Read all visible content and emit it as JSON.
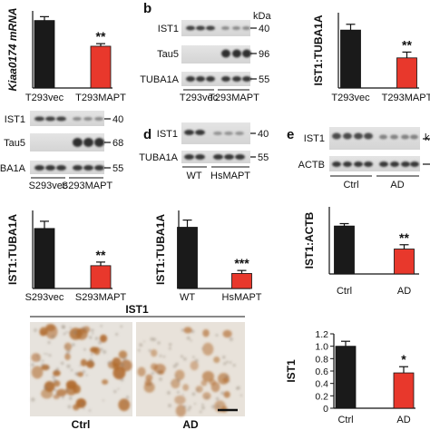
{
  "colors": {
    "control": "#1a1a1a",
    "treated": "#e8382c",
    "blot_bg": "#dedede",
    "band": "#262626"
  },
  "panels": {
    "b": {
      "letter": "b"
    },
    "d": {
      "letter": "d"
    },
    "e": {
      "letter": "e"
    }
  },
  "chart_data": [
    {
      "id": "chart-a-mrna",
      "type": "bar",
      "ylabel": "Kiaa0174 mRNA",
      "categories": [
        "T293vec",
        "T293MAPT"
      ],
      "values": [
        1.05,
        0.65
      ],
      "errors": [
        0.06,
        0.04
      ],
      "significance": "**",
      "ylim": [
        0,
        1.2
      ]
    },
    {
      "id": "chart-b-ratio",
      "type": "bar",
      "ylabel": "IST1:TUBA1A",
      "categories": [
        "T293vec",
        "T293MAPT"
      ],
      "values": [
        1.0,
        0.52
      ],
      "errors": [
        0.1,
        0.1
      ],
      "significance": "**",
      "ylim": [
        0,
        1.3
      ]
    },
    {
      "id": "chart-c-ratio",
      "type": "bar",
      "ylabel": "IST1:TUBA1A",
      "categories": [
        "S293vec",
        "S293MAPT"
      ],
      "values": [
        1.0,
        0.38
      ],
      "errors": [
        0.12,
        0.06
      ],
      "significance": "**",
      "ylim": [
        0,
        1.3
      ]
    },
    {
      "id": "chart-d-ratio",
      "type": "bar",
      "ylabel": "IST1:TUBA1A",
      "categories": [
        "WT",
        "HsMAPT"
      ],
      "values": [
        1.02,
        0.25
      ],
      "errors": [
        0.12,
        0.05
      ],
      "significance": "***",
      "ylim": [
        0,
        1.3
      ]
    },
    {
      "id": "chart-e-ratio",
      "type": "bar",
      "ylabel": "IST1:ACTB",
      "categories": [
        "Ctrl",
        "AD"
      ],
      "values": [
        1.0,
        0.52
      ],
      "errors": [
        0.05,
        0.09
      ],
      "significance": "**",
      "ylim": [
        0,
        1.4
      ]
    },
    {
      "id": "chart-f-ist1",
      "type": "bar",
      "ylabel": "IST1",
      "categories": [
        "Ctrl",
        "AD"
      ],
      "values": [
        1.0,
        0.57
      ],
      "errors": [
        0.08,
        0.1
      ],
      "significance": "*",
      "ylim": [
        0,
        1.2
      ],
      "yticks": [
        "0",
        "0.2",
        "0.4",
        "0.6",
        "0.8",
        "1.0",
        "1.2"
      ]
    }
  ],
  "blots": {
    "b": {
      "kda_label": "kDa",
      "rows": [
        {
          "label": "IST1",
          "marker": "40"
        },
        {
          "label": "Tau5",
          "marker": "96"
        },
        {
          "label": "TUBA1A",
          "marker": "55"
        }
      ],
      "groups": [
        "T293vec",
        "T293MAPT"
      ]
    },
    "c": {
      "rows": [
        {
          "label": "IST1",
          "marker": "40"
        },
        {
          "label": "Tau5",
          "marker": "68"
        },
        {
          "label": "TUBA1A",
          "marker": "55"
        }
      ],
      "groups": [
        "S293vec",
        "S293MAPT"
      ]
    },
    "d": {
      "rows": [
        {
          "label": "IST1",
          "marker": "40"
        },
        {
          "label": "TUBA1A",
          "marker": "55"
        }
      ],
      "groups": [
        "WT",
        "HsMAPT"
      ]
    },
    "e": {
      "kda_label": "k",
      "rows": [
        {
          "label": "IST1"
        },
        {
          "label": "ACTB"
        }
      ],
      "groups": [
        "Ctrl",
        "AD"
      ]
    }
  },
  "ihc": {
    "title": "IST1",
    "labels": [
      "Ctrl",
      "AD"
    ]
  }
}
